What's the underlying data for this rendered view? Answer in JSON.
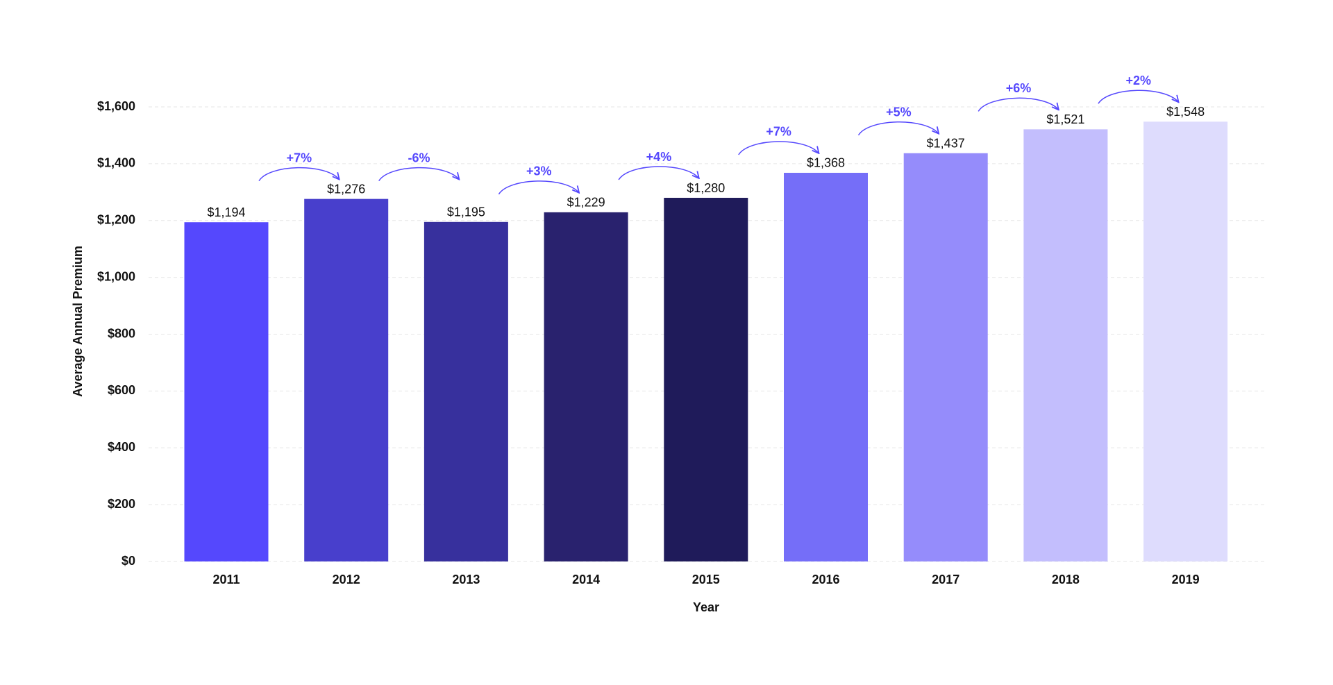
{
  "chart_data": {
    "type": "bar",
    "x_label": "Year",
    "y_label": "Average Annual Premium",
    "categories": [
      "2011",
      "2012",
      "2013",
      "2014",
      "2015",
      "2016",
      "2017",
      "2018",
      "2019"
    ],
    "values": [
      1194,
      1276,
      1195,
      1229,
      1280,
      1368,
      1437,
      1521,
      1548
    ],
    "value_labels": [
      "$1,194",
      "$1,276",
      "$1,195",
      "$1,229",
      "$1,280",
      "$1,368",
      "$1,437",
      "$1,521",
      "$1,548"
    ],
    "colors": [
      "#5548fd",
      "#483fcc",
      "#37309d",
      "#29226e",
      "#1f1b5a",
      "#756ef8",
      "#958cfb",
      "#c3befd",
      "#dedcfd"
    ],
    "changes": [
      "+7%",
      "-6%",
      "+3%",
      "+4%",
      "+7%",
      "+5%",
      "+6%",
      "+2%"
    ],
    "ylim": [
      0,
      1600
    ],
    "yticks": [
      {
        "value": 0,
        "label": "$0"
      },
      {
        "value": 200,
        "label": "$200"
      },
      {
        "value": 400,
        "label": "$400"
      },
      {
        "value": 600,
        "label": "$600"
      },
      {
        "value": 800,
        "label": "$800"
      },
      {
        "value": 1000,
        "label": "$1,000"
      },
      {
        "value": 1200,
        "label": "$1,200"
      },
      {
        "value": 1400,
        "label": "$1,400"
      },
      {
        "value": 1600,
        "label": "$1,600"
      }
    ],
    "grid": true
  }
}
